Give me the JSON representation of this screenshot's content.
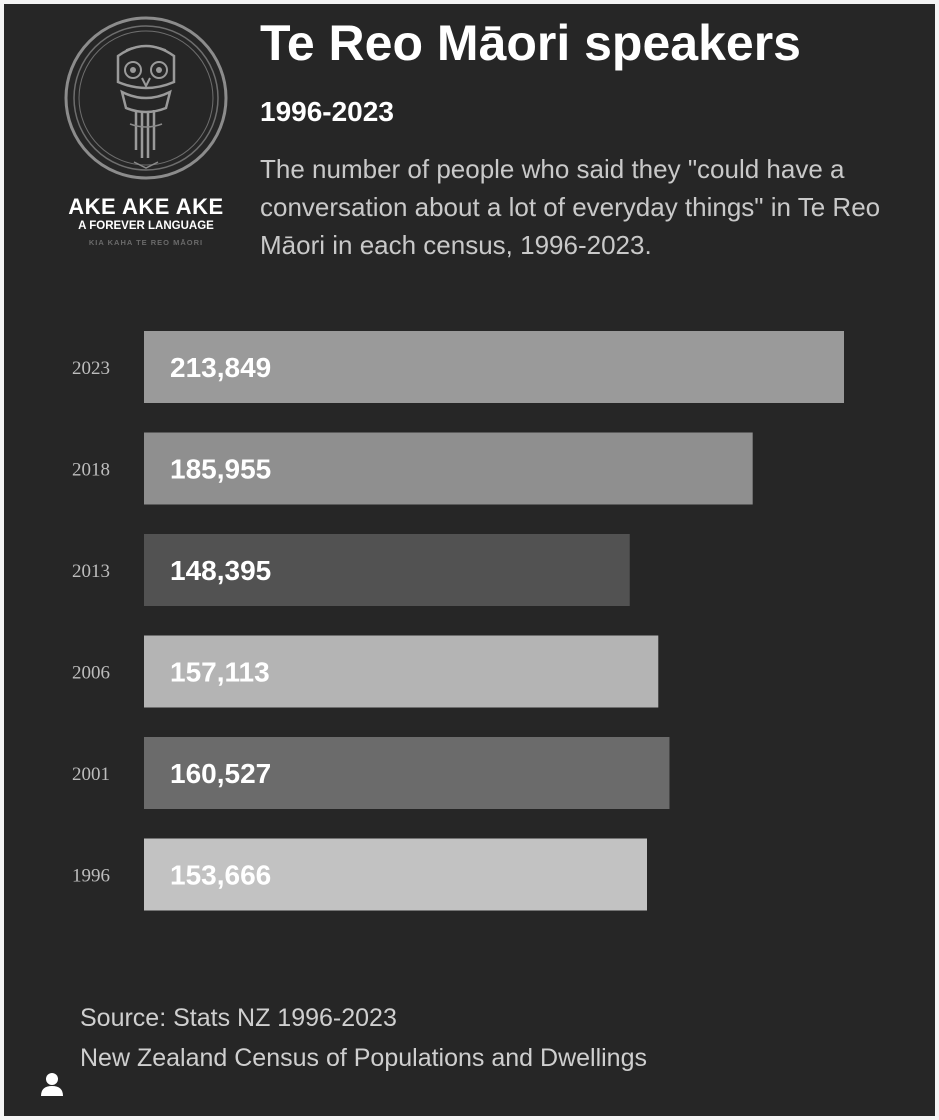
{
  "logo": {
    "title": "AKE AKE AKE",
    "subtitle": "A FOREVER LANGUAGE",
    "tagline": "KIA KAHA TE REO MĀORI"
  },
  "header": {
    "title": "Te Reo Māori speakers",
    "subtitle": "1996-2023",
    "description": "The number of people who said they \"could have a conversation about a lot of everyday things\" in Te Reo Māori in each census, 1996-2023."
  },
  "chart_data": {
    "type": "bar",
    "orientation": "horizontal",
    "title": "Te Reo Māori speakers",
    "subtitle": "1996-2023",
    "categories": [
      "2023",
      "2018",
      "2013",
      "2006",
      "2001",
      "1996"
    ],
    "values": [
      213849,
      185955,
      148395,
      157113,
      160527,
      153666
    ],
    "value_labels": [
      "213,849",
      "185,955",
      "148,395",
      "157,113",
      "160,527",
      "153,666"
    ],
    "colors": [
      "#9a9a9a",
      "#8f8f8f",
      "#525252",
      "#b4b4b4",
      "#6b6b6b",
      "#c2c2c2"
    ],
    "xlabel": "",
    "ylabel": "",
    "grid": false,
    "legend": "none"
  },
  "footer": {
    "source": "Source: Stats NZ 1996-2023",
    "source_detail": "New Zealand Census of Populations and Dwellings"
  },
  "icons": {
    "user": "user-icon",
    "logo": "tiki-mask-icon"
  }
}
